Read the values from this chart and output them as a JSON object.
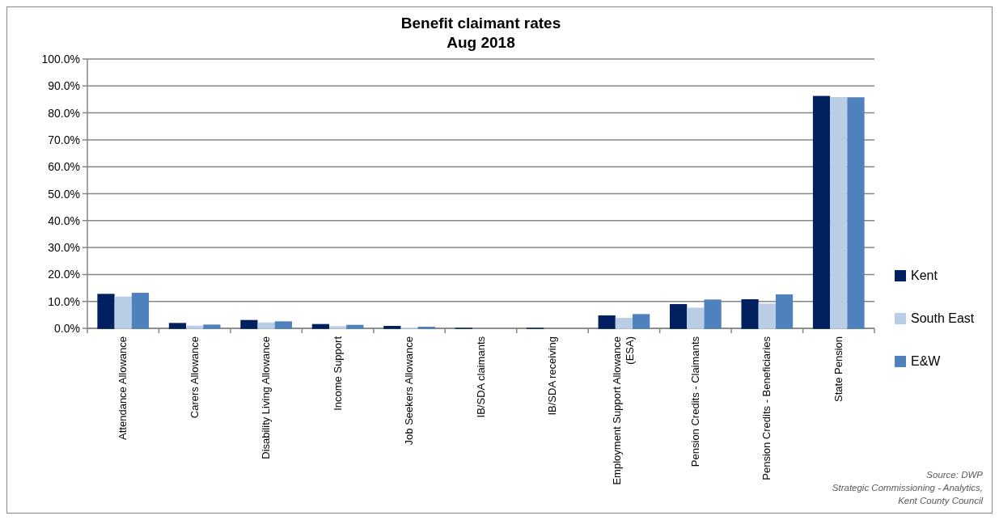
{
  "chart_data": {
    "type": "bar",
    "title": "Benefit claimant rates\nAug 2018",
    "categories": [
      "Attendance Allowance",
      "Carers Allowance",
      "Disability Living Allowance",
      "Income Support",
      "Job Seekers Allowance",
      "IB/SDA claimants",
      "IB/SDA receiving",
      "Employment Support Allowance\n(ESA)",
      "Pension Credits - Claimants",
      "Pension Credits - Beneficiaries",
      "State Pension"
    ],
    "series": [
      {
        "name": "Kent",
        "color": "#002060",
        "values": [
          12.8,
          2.0,
          3.1,
          1.6,
          0.9,
          0.2,
          0.2,
          4.8,
          9.0,
          10.8,
          86.3
        ]
      },
      {
        "name": "South East",
        "color": "#b9cde5",
        "values": [
          11.8,
          1.0,
          2.2,
          0.8,
          0.3,
          null,
          null,
          3.9,
          7.7,
          9.2,
          85.9
        ]
      },
      {
        "name": "E&W",
        "color": "#4f81bd",
        "values": [
          13.2,
          1.4,
          2.6,
          1.3,
          0.6,
          null,
          null,
          5.3,
          10.7,
          12.6,
          85.8
        ]
      }
    ],
    "ylim": [
      0,
      100
    ],
    "yticks": [
      {
        "value": 0,
        "label": "0.0%"
      },
      {
        "value": 10,
        "label": "10.0%"
      },
      {
        "value": 20,
        "label": "20.0%"
      },
      {
        "value": 30,
        "label": "30.0%"
      },
      {
        "value": 40,
        "label": "40.0%"
      },
      {
        "value": 50,
        "label": "50.0%"
      },
      {
        "value": 60,
        "label": "60.0%"
      },
      {
        "value": 70,
        "label": "70.0%"
      },
      {
        "value": 80,
        "label": "80.0%"
      },
      {
        "value": 90,
        "label": "90.0%"
      },
      {
        "value": 100,
        "label": "100.0%"
      }
    ],
    "grid": "y",
    "legend": "right",
    "annotations": [
      "Source: DWP\nStrategic Commissioning - Analytics,\nKent County Council"
    ]
  }
}
